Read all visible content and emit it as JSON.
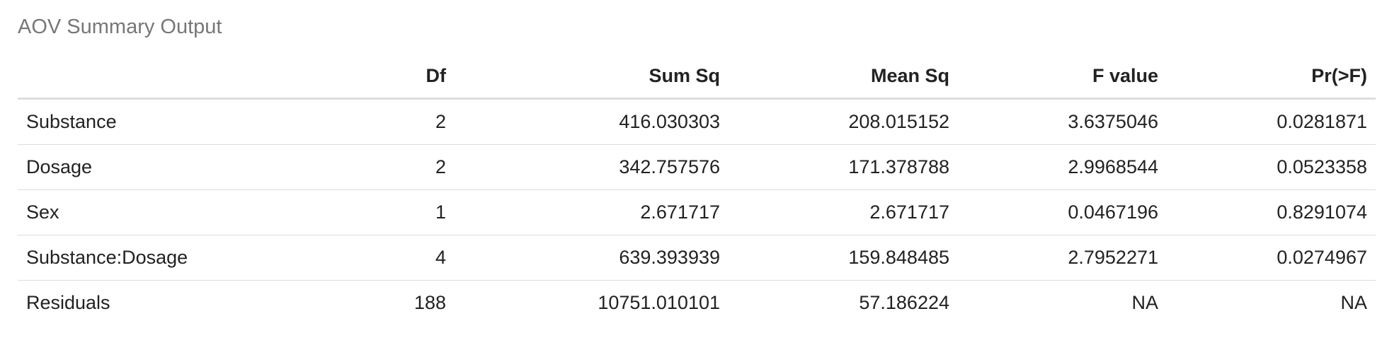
{
  "caption": "AOV Summary Output",
  "table": {
    "headers": [
      "",
      "Df",
      "Sum Sq",
      "Mean Sq",
      "F value",
      "Pr(>F)"
    ],
    "rows": [
      [
        "Substance",
        "2",
        "416.030303",
        "208.015152",
        "3.6375046",
        "0.0281871"
      ],
      [
        "Dosage",
        "2",
        "342.757576",
        "171.378788",
        "2.9968544",
        "0.0523358"
      ],
      [
        "Sex",
        "1",
        "2.671717",
        "2.671717",
        "0.0467196",
        "0.8291074"
      ],
      [
        "Substance:Dosage",
        "4",
        "639.393939",
        "159.848485",
        "2.7952271",
        "0.0274967"
      ],
      [
        "Residuals",
        "188",
        "10751.010101",
        "57.186224",
        "NA",
        "NA"
      ]
    ]
  }
}
